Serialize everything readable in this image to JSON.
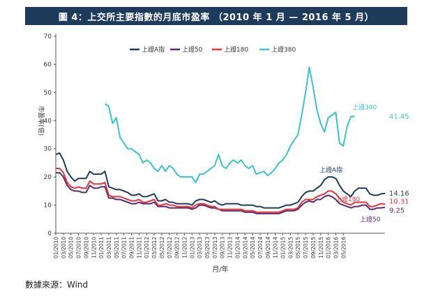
{
  "title": "圖 4：上交所主要指數的月底市盈率 （2010 年 1 月 — 2016 年 5 月）",
  "source": "數據來源：Wind",
  "chart_data": {
    "type": "line",
    "title": "圖 4：上交所主要指數的月底市盈率 （2010 年 1 月 — 2016 年 5 月）",
    "xlabel": "月/年",
    "ylabel": "市盈率(倍)",
    "ylim": [
      0,
      70
    ],
    "yticks": [
      0,
      10,
      20,
      30,
      40,
      50,
      60,
      70
    ],
    "grid": false,
    "legend_position": "top",
    "x_tick_labels": [
      "01/2010",
      "03/2010",
      "05/2010",
      "07/2010",
      "09/2010",
      "11/2010",
      "01/2011",
      "03/2011",
      "05/2011",
      "07/2011",
      "09/2011",
      "11/2011",
      "01/2012",
      "03/2012",
      "05/2012",
      "07/2012",
      "09/2012",
      "11/2012",
      "01/2013",
      "03/2013",
      "05/2013",
      "07/2013",
      "09/2013",
      "11/2013",
      "01/2014",
      "03/2014",
      "05/2014",
      "07/2014",
      "09/2014",
      "11/2014",
      "01/2015",
      "03/2015",
      "05/2015",
      "07/2015",
      "09/2015",
      "11/2015",
      "01/2016",
      "03/2016",
      "05/2016"
    ],
    "series": [
      {
        "name": "上證A指",
        "color": "#1f3b5c",
        "label": "上證A指",
        "end_label": "14.16",
        "values": [
          28,
          28.5,
          26,
          22,
          20,
          18.5,
          19.5,
          19.5,
          19.5,
          22,
          21,
          21,
          21,
          22,
          16.5,
          16,
          15.5,
          15.5,
          15,
          14.5,
          13.5,
          13.5,
          14,
          13,
          13,
          13.5,
          14,
          11.5,
          11.5,
          12,
          11,
          11,
          10.5,
          10.5,
          10.5,
          10.5,
          10,
          11.5,
          12,
          12,
          11.5,
          11,
          11.5,
          10.5,
          10,
          10.5,
          10.5,
          10.5,
          10.5,
          10,
          10,
          10,
          10,
          9.5,
          9.5,
          9,
          9,
          9,
          9,
          9,
          9.5,
          10,
          10,
          10.5,
          11,
          13,
          14.5,
          15,
          15,
          16,
          17,
          19,
          20,
          20,
          19.5,
          17,
          15,
          14,
          13,
          15,
          16,
          16,
          16,
          14,
          13.5,
          13.5,
          14,
          14.16
        ]
      },
      {
        "name": "上證50",
        "color": "#5a2a6e",
        "label": "上證50",
        "end_label": "9.25",
        "values": [
          21.5,
          21.5,
          20,
          17,
          15.5,
          15,
          15,
          14.5,
          14.5,
          17,
          16,
          16,
          16.5,
          16.5,
          12.5,
          12.5,
          12,
          12,
          11.5,
          11,
          10.5,
          10.5,
          11,
          10.5,
          10.5,
          10.5,
          11,
          9.5,
          9.5,
          9.5,
          9,
          9,
          9,
          9,
          9,
          9,
          8.5,
          9,
          10,
          10,
          9.5,
          9,
          9,
          8.5,
          8,
          8,
          8,
          8,
          8,
          8,
          7.5,
          7.5,
          7.5,
          7,
          7,
          7,
          7,
          7,
          7,
          7,
          7.5,
          8,
          8,
          8,
          8.5,
          10,
          11,
          11.5,
          11,
          12,
          12,
          13,
          13.5,
          13,
          12,
          10.5,
          10,
          9.5,
          9,
          9.5,
          9.5,
          10,
          10,
          8.5,
          8.5,
          9,
          9,
          9.25
        ]
      },
      {
        "name": "上證180",
        "color": "#e8323c",
        "label": "上證180",
        "end_label": "10.31",
        "values": [
          23,
          23,
          21.5,
          18,
          16.5,
          16,
          16.5,
          16,
          16,
          18.5,
          17.5,
          17.5,
          17.5,
          18,
          13.5,
          13,
          13,
          13,
          12.5,
          12,
          11.5,
          11.5,
          12,
          11,
          11,
          11.5,
          12,
          10,
          10,
          10.5,
          10,
          10,
          9.5,
          9.5,
          9.5,
          9.5,
          9,
          10,
          10.5,
          10.5,
          10,
          9.5,
          9.5,
          8.5,
          8.5,
          8.5,
          8.5,
          8.5,
          8.5,
          8.5,
          8,
          8,
          8,
          7.5,
          7.5,
          7.5,
          7.5,
          7.5,
          7.5,
          7.5,
          8,
          8.5,
          8.5,
          8.5,
          9,
          11,
          12,
          12,
          12,
          13,
          13.5,
          14,
          15,
          15,
          14,
          12.5,
          11,
          10.5,
          10,
          11,
          11,
          11,
          11,
          9.5,
          9.5,
          10,
          10.5,
          10.31
        ]
      },
      {
        "name": "上證380",
        "color": "#35c3cf",
        "label": "上證380",
        "end_label": "41.45",
        "start_index": 13,
        "values": [
          46,
          45,
          39,
          41,
          34,
          32,
          30,
          30,
          29,
          28,
          25,
          26,
          25,
          23,
          22,
          24,
          22,
          24,
          23,
          21,
          20,
          20,
          20,
          20,
          18,
          21,
          21,
          22,
          23,
          24,
          28,
          24,
          23,
          25,
          26,
          25,
          26,
          24,
          23,
          24,
          21,
          21.5,
          22,
          20.5,
          21.5,
          23,
          25,
          26,
          28,
          31,
          33,
          35,
          42,
          50,
          59,
          52,
          44,
          39,
          36,
          41,
          42,
          43,
          32,
          31,
          38,
          41.5,
          41.45
        ]
      }
    ]
  }
}
